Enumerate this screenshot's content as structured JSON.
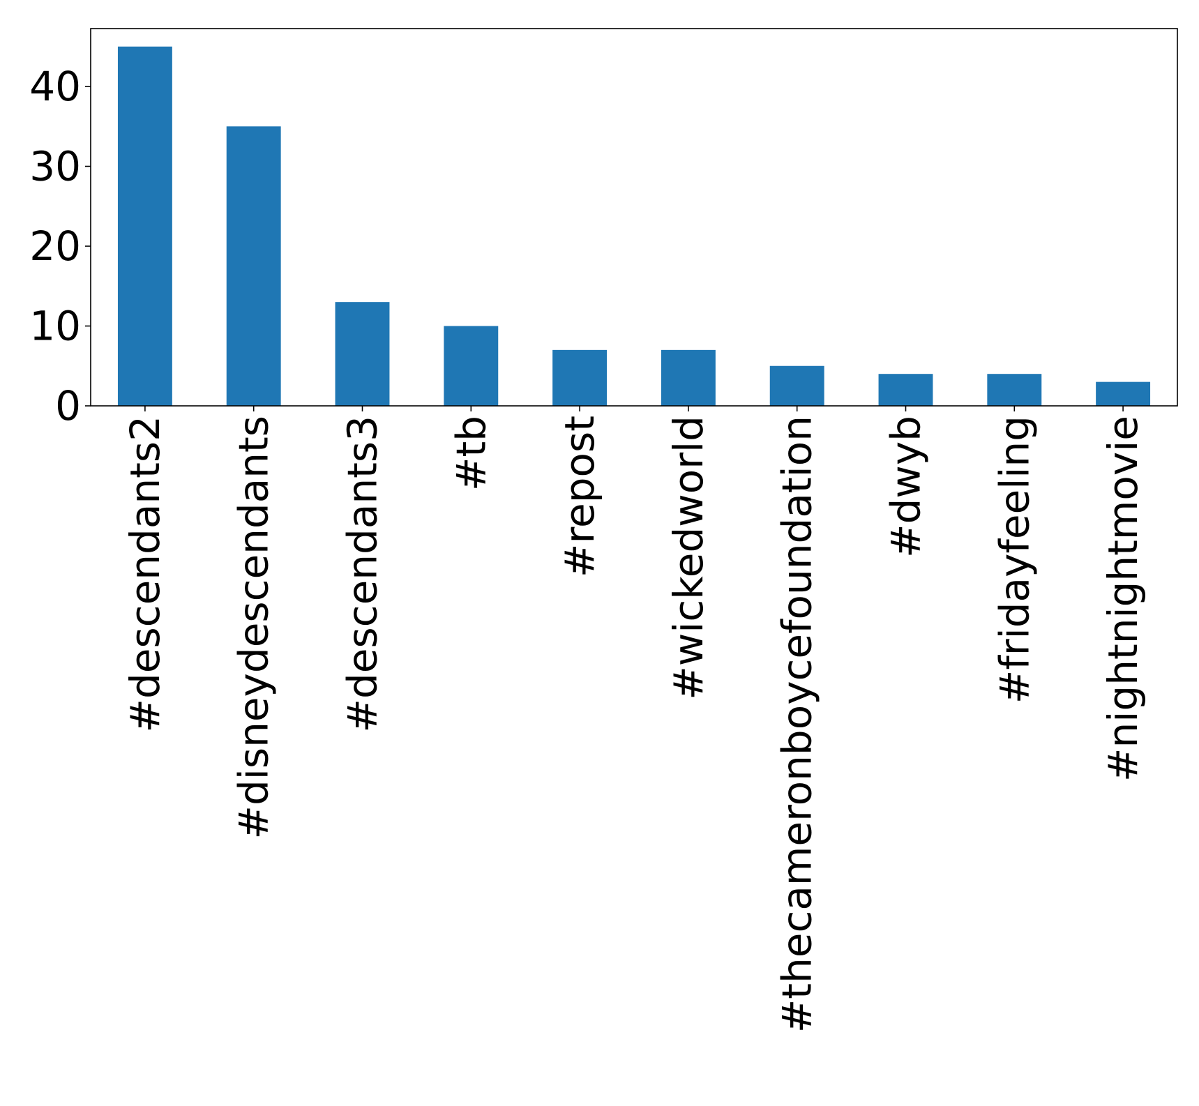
{
  "chart_data": {
    "type": "bar",
    "title": "",
    "xlabel": "",
    "ylabel": "",
    "categories": [
      "#descendants2",
      "#disneydescendants",
      "#descendants3",
      "#tb",
      "#repost",
      "#wickedworld",
      "#thecameronboycefoundation",
      "#dwyb",
      "#fridayfeeling",
      "#nightnightmovie"
    ],
    "values": [
      45,
      35,
      13,
      10,
      7,
      7,
      5,
      4,
      4,
      3
    ],
    "ylim": [
      0,
      47.25
    ],
    "yticks": [
      0,
      10,
      20,
      30,
      40
    ],
    "ytick_labels": [
      "0",
      "10",
      "20",
      "30",
      "40"
    ],
    "grid": false,
    "legend": "none",
    "colors": {
      "bar": "#1f77b4",
      "axis": "#000000",
      "background": "#ffffff"
    }
  }
}
